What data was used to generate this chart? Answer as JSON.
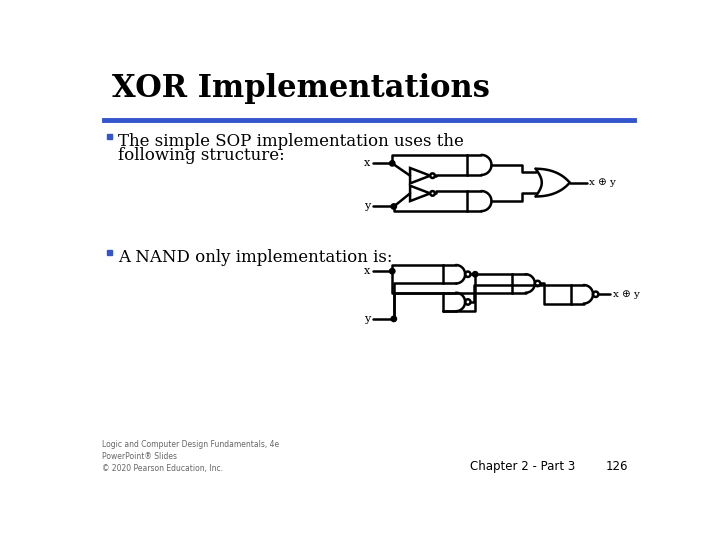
{
  "title": "XOR Implementations",
  "title_fontsize": 22,
  "title_color": "#000000",
  "title_font": "serif",
  "blue_line_color": "#3355CC",
  "bg_color": "#FFFFFF",
  "bullet_color": "#3355CC",
  "bullet1_line1": "The simple SOP implementation uses the",
  "bullet1_line2": "following structure:",
  "bullet2": "A NAND only implementation is:",
  "bullet_fontsize": 12,
  "footer_left": "Logic and Computer Design Fundamentals, 4e\nPowerPoint® Slides\n© 2020 Pearson Education, Inc.",
  "footer_right": "Chapter 2 - Part 3",
  "footer_page": "126",
  "gate_color": "#000000",
  "lw": 1.8
}
